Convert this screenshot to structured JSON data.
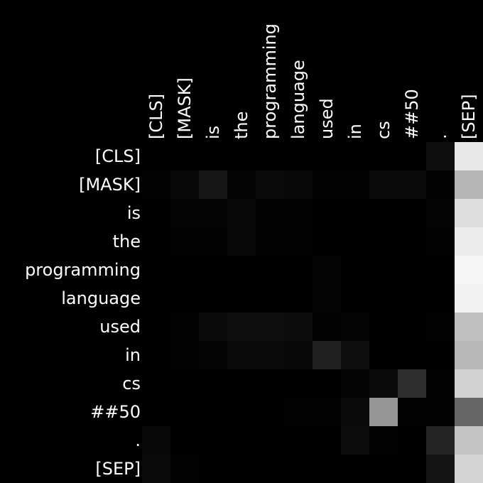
{
  "chart_data": {
    "type": "heatmap",
    "colormap": "grayscale (black = 0, white = 1)",
    "grid": false,
    "x_labels_position": "top, rotated vertical",
    "y_labels_position": "left",
    "x_labels": [
      "[CLS]",
      "[MASK]",
      "is",
      "the",
      "programming",
      "language",
      "used",
      "in",
      "cs",
      "##50",
      ".",
      "[SEP]"
    ],
    "y_labels": [
      "[CLS]",
      "[MASK]",
      "is",
      "the",
      "programming",
      "language",
      "used",
      "in",
      "cs",
      "##50",
      ".",
      "[SEP]"
    ],
    "values": [
      [
        0.0,
        0.0,
        0.0,
        0.0,
        0.0,
        0.0,
        0.0,
        0.0,
        0.0,
        0.0,
        0.06,
        0.91
      ],
      [
        0.01,
        0.03,
        0.09,
        0.02,
        0.04,
        0.03,
        0.01,
        0.01,
        0.04,
        0.04,
        0.01,
        0.71
      ],
      [
        0.0,
        0.02,
        0.02,
        0.03,
        0.01,
        0.01,
        0.0,
        0.0,
        0.0,
        0.0,
        0.02,
        0.87
      ],
      [
        0.0,
        0.01,
        0.01,
        0.03,
        0.01,
        0.01,
        0.0,
        0.0,
        0.0,
        0.0,
        0.01,
        0.92
      ],
      [
        0.0,
        0.0,
        0.0,
        0.0,
        0.0,
        0.0,
        0.02,
        0.0,
        0.0,
        0.0,
        0.0,
        0.96
      ],
      [
        0.0,
        0.0,
        0.0,
        0.0,
        0.0,
        0.0,
        0.02,
        0.0,
        0.0,
        0.0,
        0.0,
        0.95
      ],
      [
        0.0,
        0.01,
        0.04,
        0.06,
        0.06,
        0.05,
        0.01,
        0.02,
        0.0,
        0.0,
        0.01,
        0.75
      ],
      [
        0.0,
        0.01,
        0.02,
        0.04,
        0.04,
        0.03,
        0.13,
        0.06,
        0.0,
        0.0,
        0.0,
        0.72
      ],
      [
        0.0,
        0.0,
        0.0,
        0.0,
        0.0,
        0.0,
        0.0,
        0.02,
        0.04,
        0.18,
        0.01,
        0.82
      ],
      [
        0.0,
        0.0,
        0.0,
        0.0,
        0.0,
        0.01,
        0.01,
        0.04,
        0.59,
        0.01,
        0.01,
        0.4
      ],
      [
        0.03,
        0.0,
        0.0,
        0.0,
        0.0,
        0.0,
        0.0,
        0.05,
        0.01,
        0.0,
        0.14,
        0.77
      ],
      [
        0.04,
        0.01,
        0.0,
        0.0,
        0.0,
        0.0,
        0.0,
        0.0,
        0.0,
        0.0,
        0.08,
        0.83
      ]
    ]
  }
}
